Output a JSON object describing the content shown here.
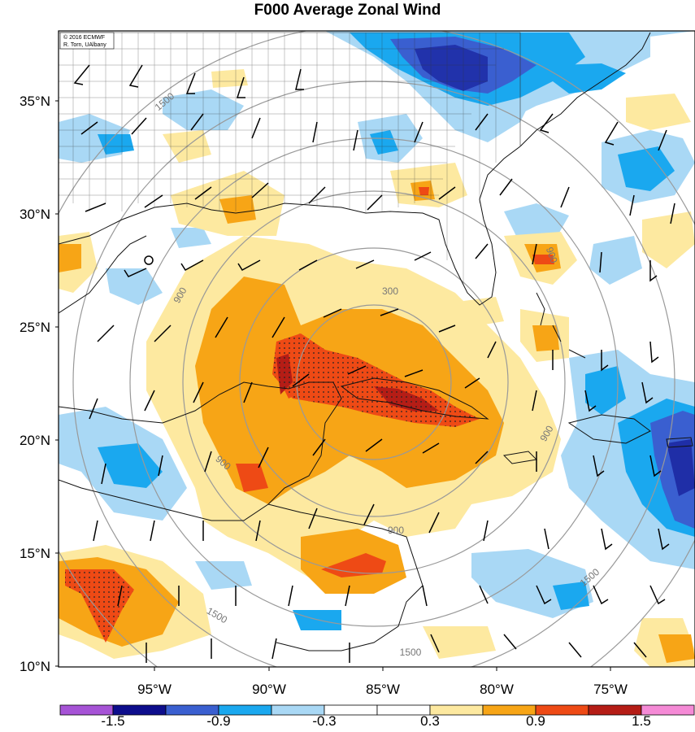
{
  "title": "F000 Average Zonal Wind",
  "credit": {
    "line1": "© 2016 ECMWF",
    "line2": "R. Torn, UAlbany"
  },
  "lat_labels": [
    "35°N",
    "30°N",
    "25°N",
    "20°N",
    "15°N",
    "10°N"
  ],
  "lon_labels": [
    "95°W",
    "90°W",
    "85°W",
    "80°W",
    "75°W"
  ],
  "range_rings": {
    "labels": [
      "300",
      "900",
      "900",
      "900",
      "900",
      "900",
      "1500",
      "1500",
      "1500",
      "1500"
    ],
    "color": "#999999"
  },
  "colorbar": {
    "tick_labels": [
      "-1.5",
      "-0.9",
      "-0.3",
      "0.3",
      "0.9",
      "1.5"
    ],
    "colors": [
      "#a653d6",
      "#0d0d8c",
      "#3a5fd0",
      "#1aa8ef",
      "#a9d8f5",
      "#ffffff",
      "#ffffff",
      "#fde9a0",
      "#f7a516",
      "#ee4a15",
      "#b51d16",
      "#f58ad6"
    ]
  },
  "legend_colors": {
    "strong_negative": "#3a4fc7",
    "moderate_negative": "#1aa8ef",
    "weak_negative": "#a9d8f5",
    "weak_positive": "#fde9a0",
    "moderate_positive": "#f7a516",
    "strong_positive": "#ee4a15"
  }
}
